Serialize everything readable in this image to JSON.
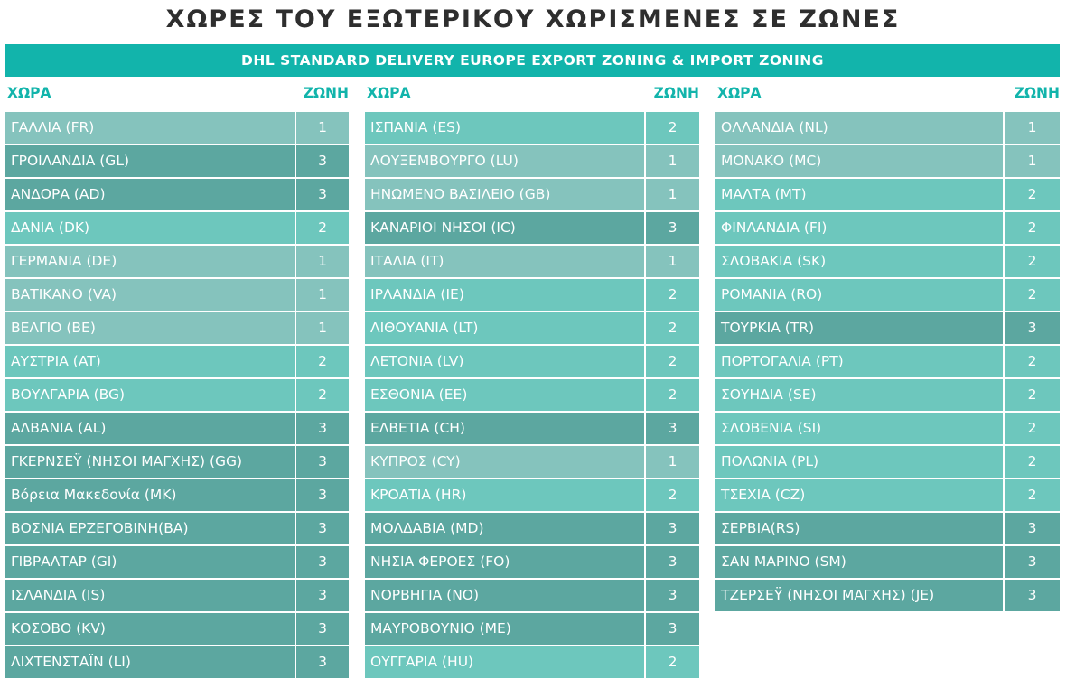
{
  "title": "ΧΩΡΕΣ ΤΟΥ ΕΞΩΤΕΡΙΚΟΥ ΧΩΡΙΣΜΕΝΕΣ ΣΕ ΖΩΝΕΣ",
  "banner": "DHL STANDARD DELIVERY EUROPE EXPORT ZONING & IMPORT ZONING",
  "header": {
    "country": "ΧΩΡΑ",
    "zone": "ΖΩΝΗ"
  },
  "zone_colors": {
    "1": "#85c3bd",
    "2": "#6dc7bd",
    "3": "#5ca7a0"
  },
  "columns": [
    [
      {
        "country": "ΓΑΛΛΙΑ (FR)",
        "zone": "1"
      },
      {
        "country": "ΓΡΟΙΛΑΝΔΙΑ (GL)",
        "zone": "3"
      },
      {
        "country": "ΑΝΔΟΡΑ (AD)",
        "zone": "3"
      },
      {
        "country": "ΔΑΝΙΑ (DK)",
        "zone": "2"
      },
      {
        "country": "ΓΕΡΜΑΝΙΑ (DE)",
        "zone": "1"
      },
      {
        "country": "ΒΑΤΙΚΑΝΟ (VA)",
        "zone": "1"
      },
      {
        "country": "ΒΕΛΓΙΟ (BE)",
        "zone": "1"
      },
      {
        "country": "ΑΥΣΤΡΙΑ (AT)",
        "zone": "2"
      },
      {
        "country": "ΒΟΥΛΓΑΡΙΑ (BG)",
        "zone": "2"
      },
      {
        "country": "ΑΛΒΑΝΙΑ (AL)",
        "zone": "3"
      },
      {
        "country": "ΓΚΕΡΝΣΕΫ (ΝΗΣΟΙ ΜΑΓΧΗΣ) (GG)",
        "zone": "3"
      },
      {
        "country": "Βόρεια Μακεδονία (MK)",
        "zone": "3"
      },
      {
        "country": "ΒΟΣΝΙΑ ΕΡΖΕΓΟΒΙΝΗ(BA)",
        "zone": "3"
      },
      {
        "country": "ΓΙΒΡΑΛΤΑΡ (GI)",
        "zone": "3"
      },
      {
        "country": "ΙΣΛΑΝΔΙΑ (IS)",
        "zone": "3"
      },
      {
        "country": "ΚΟΣΟΒΟ (KV)",
        "zone": "3"
      },
      {
        "country": "ΛΙΧΤΕΝΣΤΑΪΝ (LI)",
        "zone": "3"
      }
    ],
    [
      {
        "country": "ΙΣΠΑΝΙΑ (ES)",
        "zone": "2"
      },
      {
        "country": "ΛΟΥΞΕΜΒΟΥΡΓΟ (LU)",
        "zone": "1"
      },
      {
        "country": "ΗΝΩΜΕΝΟ ΒΑΣΙΛΕΙΟ (GB)",
        "zone": "1"
      },
      {
        "country": "ΚΑΝΑΡΙΟΙ ΝΗΣΟΙ (IC)",
        "zone": "3"
      },
      {
        "country": "ΙΤΑΛΙΑ (IT)",
        "zone": "1"
      },
      {
        "country": "ΙΡΛΑΝΔΙΑ (IE)",
        "zone": "2"
      },
      {
        "country": "ΛΙΘΟΥΑΝΙΑ (LT)",
        "zone": "2"
      },
      {
        "country": "ΛΕΤΟΝΙΑ (LV)",
        "zone": "2"
      },
      {
        "country": "ΕΣΘΟΝΙΑ (EE)",
        "zone": "2"
      },
      {
        "country": "ΕΛΒΕΤΙΑ (CH)",
        "zone": "3"
      },
      {
        "country": "ΚΥΠΡΟΣ (CY)",
        "zone": "1"
      },
      {
        "country": "ΚΡΟΑΤΙΑ (HR)",
        "zone": "2"
      },
      {
        "country": "ΜΟΛΔΑΒΙΑ (MD)",
        "zone": "3"
      },
      {
        "country": "ΝΗΣΙΑ ΦΕΡΟΕΣ (FO)",
        "zone": "3"
      },
      {
        "country": "ΝΟΡΒΗΓΙΑ (NO)",
        "zone": "3"
      },
      {
        "country": "ΜΑΥΡΟΒΟΥΝΙΟ (ME)",
        "zone": "3"
      },
      {
        "country": "ΟΥΓΓΑΡΙΑ (HU)",
        "zone": "2"
      }
    ],
    [
      {
        "country": "ΟΛΛΑΝΔΙΑ (NL)",
        "zone": "1"
      },
      {
        "country": "ΜΟΝΑΚΟ (MC)",
        "zone": "1"
      },
      {
        "country": "ΜΑΛΤΑ (MT)",
        "zone": "2"
      },
      {
        "country": "ΦΙΝΛΑΝΔΙΑ (FI)",
        "zone": "2"
      },
      {
        "country": "ΣΛΟΒΑΚΙΑ (SK)",
        "zone": "2"
      },
      {
        "country": "ΡΟΜΑΝΙΑ (RO)",
        "zone": "2"
      },
      {
        "country": "ΤΟΥΡΚΙΑ (TR)",
        "zone": "3"
      },
      {
        "country": "ΠΟΡΤΟΓΑΛΙΑ (PT)",
        "zone": "2"
      },
      {
        "country": "ΣΟΥΗΔΙΑ (SE)",
        "zone": "2"
      },
      {
        "country": "ΣΛΟΒΕΝΙΑ (SI)",
        "zone": "2"
      },
      {
        "country": "ΠΟΛΩΝΙΑ (PL)",
        "zone": "2"
      },
      {
        "country": "ΤΣΕΧΙΑ (CZ)",
        "zone": "2"
      },
      {
        "country": "ΣΕΡΒΙΑ(RS)",
        "zone": "3"
      },
      {
        "country": "ΣΑΝ ΜΑΡΙΝΟ (SM)",
        "zone": "3"
      },
      {
        "country": "ΤΖΕΡΣΕΫ (ΝΗΣΟΙ ΜΑΓΧΗΣ) (JE)",
        "zone": "3"
      }
    ]
  ]
}
